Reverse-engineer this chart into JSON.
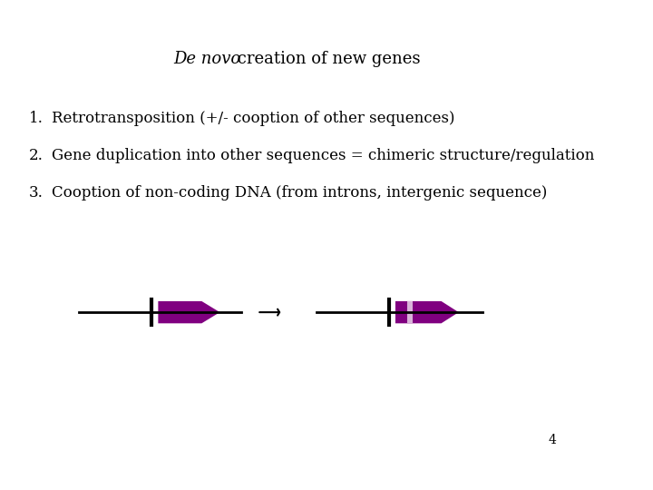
{
  "title_italic": "De novo",
  "title_rest": " creation of new genes",
  "items": [
    {
      "num": "1.",
      "text": "Retrotransposition (+/- cooption of other sequences)"
    },
    {
      "num": "2.",
      "text": "Gene duplication into other sequences = chimeric structure/regulation"
    },
    {
      "num": "3.",
      "text": "Cooption of non-coding DNA (from introns, intergenic sequence)"
    }
  ],
  "page_num": "4",
  "bg_color": "#ffffff",
  "text_color": "#000000",
  "arrow_color": "#800080",
  "line_color": "#000000",
  "intron_color": "#d9b3d9",
  "title_fontsize": 13,
  "body_fontsize": 12,
  "page_fontsize": 10
}
